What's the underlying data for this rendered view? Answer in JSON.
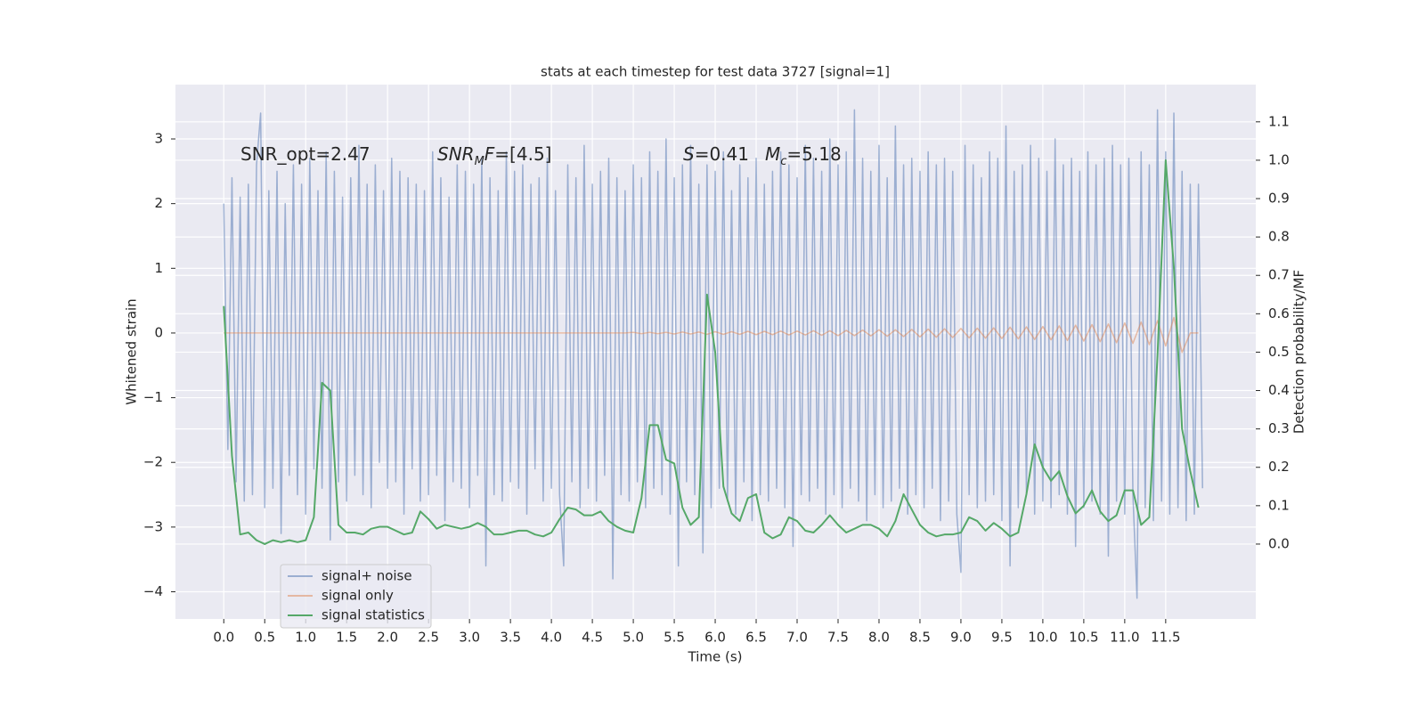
{
  "chart_data": {
    "type": "line",
    "title": "stats at each timestep for test data 3727 [signal=1]",
    "x_label": "Time (s)",
    "y_label": "Whitened strain",
    "y2_label": "Detection probability/MF",
    "annotations": [
      [
        "SNR_opt=2.47"
      ],
      [
        "SNR",
        "M",
        "F",
        "=[4.5]"
      ],
      [
        "S",
        "=0.41"
      ],
      [
        "M",
        "c",
        "=5.18"
      ]
    ],
    "xlim": [
      -0.59,
      12.6
    ],
    "ylim": [
      -4.42,
      3.84
    ],
    "y2lim": [
      -0.195,
      1.197
    ],
    "xticks": [
      {
        "value": 0,
        "label": "0.0"
      },
      {
        "value": 0.5,
        "label": "0.5"
      },
      {
        "value": 1,
        "label": "1.0"
      },
      {
        "value": 1.5,
        "label": "1.5"
      },
      {
        "value": 2,
        "label": "2.0"
      },
      {
        "value": 2.5,
        "label": "2.5"
      },
      {
        "value": 3,
        "label": "3.0"
      },
      {
        "value": 3.5,
        "label": "3.5"
      },
      {
        "value": 4,
        "label": "4.0"
      },
      {
        "value": 4.5,
        "label": "4.5"
      },
      {
        "value": 5,
        "label": "5.0"
      },
      {
        "value": 5.5,
        "label": "5.5"
      },
      {
        "value": 6,
        "label": "6.0"
      },
      {
        "value": 6.5,
        "label": "6.5"
      },
      {
        "value": 7,
        "label": "7.0"
      },
      {
        "value": 7.5,
        "label": "7.5"
      },
      {
        "value": 8,
        "label": "8.0"
      },
      {
        "value": 8.5,
        "label": "8.5"
      },
      {
        "value": 9,
        "label": "9.0"
      },
      {
        "value": 9.5,
        "label": "9.5"
      },
      {
        "value": 10,
        "label": "10.0"
      },
      {
        "value": 10.5,
        "label": "10.5"
      },
      {
        "value": 11,
        "label": "11.0"
      },
      {
        "value": 11.5,
        "label": "11.5"
      }
    ],
    "yticks": [
      {
        "value": -4,
        "label": "−4"
      },
      {
        "value": -3,
        "label": "−3"
      },
      {
        "value": -2,
        "label": "−2"
      },
      {
        "value": -1,
        "label": "−1"
      },
      0,
      1,
      2,
      3
    ],
    "y2ticks": [
      {
        "value": 0,
        "label": "0.0"
      },
      {
        "value": 0.1,
        "label": "0.1"
      },
      {
        "value": 0.2,
        "label": "0.2"
      },
      {
        "value": 0.3,
        "label": "0.3"
      },
      {
        "value": 0.4,
        "label": "0.4"
      },
      {
        "value": 0.5,
        "label": "0.5"
      },
      {
        "value": 0.6,
        "label": "0.6"
      },
      {
        "value": 0.7,
        "label": "0.7"
      },
      {
        "value": 0.8,
        "label": "0.8"
      },
      {
        "value": 0.9,
        "label": "0.9"
      },
      {
        "value": 1,
        "label": "1.0"
      },
      {
        "value": 1.1,
        "label": "1.1"
      }
    ],
    "grid": true,
    "legend": "lower left",
    "series": [
      {
        "name": "signal+ noise",
        "color": "#4c72b0",
        "x": [
          0,
          0.05,
          0.1,
          0.15,
          0.2,
          0.25,
          0.3,
          0.35,
          0.4,
          0.45,
          0.5,
          0.55,
          0.6,
          0.65,
          0.7,
          0.75,
          0.8,
          0.85,
          0.9,
          0.95,
          1,
          1.05,
          1.1,
          1.15,
          1.2,
          1.25,
          1.3,
          1.35,
          1.4,
          1.45,
          1.5,
          1.55,
          1.6,
          1.65,
          1.7,
          1.75,
          1.8,
          1.85,
          1.9,
          1.95,
          2,
          2.05,
          2.1,
          2.15,
          2.2,
          2.25,
          2.3,
          2.35,
          2.4,
          2.45,
          2.5,
          2.55,
          2.6,
          2.65,
          2.7,
          2.75,
          2.8,
          2.85,
          2.9,
          2.95,
          3,
          3.05,
          3.1,
          3.15,
          3.2,
          3.25,
          3.3,
          3.35,
          3.4,
          3.45,
          3.5,
          3.55,
          3.6,
          3.65,
          3.7,
          3.75,
          3.8,
          3.85,
          3.9,
          3.95,
          4,
          4.05,
          4.1,
          4.15,
          4.2,
          4.25,
          4.3,
          4.35,
          4.4,
          4.45,
          4.5,
          4.55,
          4.6,
          4.65,
          4.7,
          4.75,
          4.8,
          4.85,
          4.9,
          4.95,
          5,
          5.05,
          5.1,
          5.15,
          5.2,
          5.25,
          5.3,
          5.35,
          5.4,
          5.45,
          5.5,
          5.55,
          5.6,
          5.65,
          5.7,
          5.75,
          5.8,
          5.85,
          5.9,
          5.95,
          6,
          6.05,
          6.1,
          6.15,
          6.2,
          6.25,
          6.3,
          6.35,
          6.4,
          6.45,
          6.5,
          6.55,
          6.6,
          6.65,
          6.7,
          6.75,
          6.8,
          6.85,
          6.9,
          6.95,
          7,
          7.05,
          7.1,
          7.15,
          7.2,
          7.25,
          7.3,
          7.35,
          7.4,
          7.45,
          7.5,
          7.55,
          7.6,
          7.65,
          7.7,
          7.75,
          7.8,
          7.85,
          7.9,
          7.95,
          8,
          8.05,
          8.1,
          8.15,
          8.2,
          8.25,
          8.3,
          8.35,
          8.4,
          8.45,
          8.5,
          8.55,
          8.6,
          8.65,
          8.7,
          8.75,
          8.8,
          8.85,
          8.9,
          8.95,
          9,
          9.05,
          9.1,
          9.15,
          9.2,
          9.25,
          9.3,
          9.35,
          9.4,
          9.45,
          9.5,
          9.55,
          9.6,
          9.65,
          9.7,
          9.75,
          9.8,
          9.85,
          9.9,
          9.95,
          10,
          10.05,
          10.1,
          10.15,
          10.2,
          10.25,
          10.3,
          10.35,
          10.4,
          10.45,
          10.5,
          10.55,
          10.6,
          10.65,
          10.7,
          10.75,
          10.8,
          10.85,
          10.9,
          10.95,
          11,
          11.05,
          11.1,
          11.15,
          11.2,
          11.25,
          11.3,
          11.35,
          11.4,
          11.45,
          11.5,
          11.55,
          11.6,
          11.65,
          11.7,
          11.75,
          11.8,
          11.85,
          11.9,
          11.95
        ],
        "values": [
          2.0,
          -1.8,
          2.4,
          -2.3,
          2.1,
          -2.6,
          2.3,
          -2.5,
          2.6,
          3.4,
          -2.7,
          2.2,
          -2.4,
          2.5,
          -3.1,
          2.0,
          -2.2,
          2.6,
          -2.5,
          2.3,
          -2.8,
          2.7,
          -2.1,
          2.2,
          -2.4,
          2.8,
          -3.2,
          2.5,
          -2.3,
          2.1,
          -2.6,
          2.4,
          -2.2,
          2.9,
          -2.5,
          2.3,
          -2.7,
          2.6,
          -2.0,
          2.2,
          -2.4,
          2.7,
          -2.3,
          2.5,
          -2.8,
          2.4,
          -2.1,
          2.3,
          -2.6,
          2.2,
          -2.5,
          2.8,
          -2.2,
          2.4,
          -2.9,
          2.1,
          -2.3,
          2.6,
          -2.4,
          2.5,
          -2.7,
          2.3,
          -2.2,
          2.7,
          -3.6,
          2.4,
          -2.5,
          2.2,
          -2.6,
          2.8,
          -2.3,
          2.5,
          -2.4,
          2.6,
          -2.8,
          2.3,
          -2.1,
          2.4,
          -2.6,
          2.7,
          -2.4,
          2.2,
          -2.5,
          -3.6,
          2.6,
          -2.3,
          2.4,
          -2.7,
          2.9,
          -2.4,
          2.3,
          -2.6,
          2.5,
          -2.2,
          2.7,
          -3.8,
          2.4,
          -2.5,
          2.2,
          -2.6,
          2.6,
          -2.3,
          2.4,
          -2.7,
          2.8,
          -2.4,
          2.5,
          -2.5,
          3.0,
          -2.8,
          2.4,
          -3.6,
          2.6,
          -2.3,
          2.9,
          -2.5,
          2.3,
          -3.4,
          2.6,
          -2.7,
          2.5,
          -2.4,
          2.8,
          -2.6,
          2.2,
          -2.8,
          2.6,
          -2.3,
          2.4,
          -2.9,
          2.7,
          -2.5,
          2.3,
          -2.6,
          2.5,
          -2.4,
          2.8,
          -2.7,
          2.6,
          -3.3,
          2.4,
          -2.5,
          2.9,
          -2.6,
          2.7,
          -2.4,
          2.5,
          -2.8,
          3.0,
          -2.5,
          2.6,
          -2.7,
          2.8,
          -2.4,
          3.45,
          -2.6,
          2.7,
          -2.9,
          2.5,
          -2.5,
          2.9,
          -2.7,
          2.4,
          -2.6,
          3.2,
          -2.4,
          2.6,
          -2.8,
          2.7,
          -2.5,
          2.5,
          -2.7,
          2.8,
          -2.4,
          2.6,
          -2.9,
          2.7,
          -2.6,
          2.5,
          -2.8,
          -3.7,
          2.9,
          -2.5,
          2.6,
          -2.7,
          2.4,
          -2.6,
          2.8,
          -2.5,
          2.7,
          -2.9,
          3.2,
          -3.6,
          2.5,
          -2.7,
          2.6,
          -2.5,
          2.9,
          -2.8,
          2.7,
          -2.6,
          2.5,
          -2.7,
          3.0,
          -2.5,
          2.6,
          -2.8,
          2.7,
          -3.3,
          2.5,
          -2.7,
          2.8,
          -2.6,
          2.6,
          -2.8,
          2.7,
          -3.45,
          2.9,
          -2.6,
          2.6,
          -2.8,
          2.7,
          -2.5,
          -4.1,
          2.8,
          -2.7,
          2.6,
          -2.9,
          3.45,
          -2.6,
          2.8,
          -2.8,
          3.4,
          -2.7,
          2.5,
          -2.9,
          2.3,
          -2.8,
          2.3,
          -2.4
        ]
      },
      {
        "name": "signal only",
        "color": "#dd8452",
        "x": [
          0,
          0.1,
          0.2,
          0.3,
          0.4,
          0.5,
          0.6,
          0.7,
          0.8,
          0.9,
          1,
          1.1,
          1.2,
          1.3,
          1.4,
          1.5,
          1.6,
          1.7,
          1.8,
          1.9,
          2,
          2.1,
          2.2,
          2.3,
          2.4,
          2.5,
          2.6,
          2.7,
          2.8,
          2.9,
          3,
          3.1,
          3.2,
          3.3,
          3.4,
          3.5,
          3.6,
          3.7,
          3.8,
          3.9,
          4,
          4.1,
          4.2,
          4.3,
          4.4,
          4.5,
          4.6,
          4.7,
          4.8,
          4.9,
          5,
          5.1,
          5.2,
          5.3,
          5.4,
          5.5,
          5.6,
          5.7,
          5.8,
          5.9,
          6,
          6.1,
          6.2,
          6.3,
          6.4,
          6.5,
          6.6,
          6.7,
          6.8,
          6.9,
          7,
          7.1,
          7.2,
          7.3,
          7.4,
          7.5,
          7.6,
          7.7,
          7.8,
          7.9,
          8,
          8.1,
          8.2,
          8.3,
          8.4,
          8.5,
          8.6,
          8.7,
          8.8,
          8.9,
          9,
          9.1,
          9.2,
          9.3,
          9.4,
          9.5,
          9.6,
          9.7,
          9.8,
          9.9,
          10,
          10.1,
          10.2,
          10.3,
          10.4,
          10.5,
          10.6,
          10.7,
          10.8,
          10.9,
          11,
          11.1,
          11.2,
          11.3,
          11.4,
          11.5,
          11.6,
          11.7,
          11.8,
          11.9
        ],
        "values": [
          0,
          0,
          0,
          0,
          0,
          0,
          0,
          0,
          0,
          0,
          0,
          0,
          0,
          0,
          0,
          0,
          0,
          0,
          0,
          0,
          0,
          0,
          0,
          0,
          0,
          0,
          0,
          0,
          0,
          0,
          0,
          0,
          0,
          0,
          0,
          0,
          0,
          0,
          0,
          0,
          0,
          0,
          0,
          0,
          0,
          0,
          0,
          0,
          0,
          0,
          0.01,
          -0.01,
          0.01,
          -0.01,
          0.01,
          -0.015,
          0.015,
          -0.015,
          0.015,
          -0.02,
          0.02,
          -0.02,
          0.02,
          -0.02,
          0.025,
          -0.025,
          0.025,
          -0.025,
          0.03,
          -0.03,
          0.03,
          -0.03,
          0.035,
          -0.035,
          0.035,
          -0.04,
          0.04,
          -0.04,
          0.045,
          -0.045,
          0.05,
          -0.05,
          0.05,
          -0.055,
          0.055,
          -0.06,
          0.06,
          -0.065,
          0.065,
          -0.07,
          0.07,
          -0.075,
          0.075,
          -0.08,
          0.08,
          -0.085,
          0.09,
          -0.09,
          0.095,
          -0.1,
          0.1,
          -0.105,
          0.11,
          -0.115,
          0.12,
          -0.125,
          0.13,
          -0.135,
          0.14,
          -0.15,
          0.155,
          -0.16,
          0.17,
          -0.18,
          0.19,
          -0.2,
          0.24,
          -0.3,
          0,
          0
        ]
      },
      {
        "name": "signal statistics",
        "color": "#55a868",
        "axis": "y2",
        "x": [
          0,
          0.1,
          0.2,
          0.3,
          0.4,
          0.5,
          0.6,
          0.7,
          0.8,
          0.9,
          1,
          1.1,
          1.2,
          1.3,
          1.4,
          1.5,
          1.6,
          1.7,
          1.8,
          1.9,
          2,
          2.1,
          2.2,
          2.3,
          2.4,
          2.5,
          2.6,
          2.7,
          2.8,
          2.9,
          3,
          3.1,
          3.2,
          3.3,
          3.4,
          3.5,
          3.6,
          3.7,
          3.8,
          3.9,
          4,
          4.1,
          4.2,
          4.3,
          4.4,
          4.5,
          4.6,
          4.7,
          4.8,
          4.9,
          5,
          5.1,
          5.2,
          5.3,
          5.4,
          5.5,
          5.6,
          5.7,
          5.8,
          5.9,
          6,
          6.1,
          6.2,
          6.3,
          6.4,
          6.5,
          6.6,
          6.7,
          6.8,
          6.9,
          7,
          7.1,
          7.2,
          7.3,
          7.4,
          7.5,
          7.6,
          7.7,
          7.8,
          7.9,
          8,
          8.1,
          8.2,
          8.3,
          8.4,
          8.5,
          8.6,
          8.7,
          8.8,
          8.9,
          9,
          9.1,
          9.2,
          9.3,
          9.4,
          9.5,
          9.6,
          9.7,
          9.8,
          9.9,
          10,
          10.1,
          10.2,
          10.3,
          10.4,
          10.5,
          10.6,
          10.7,
          10.8,
          10.9,
          11,
          11.1,
          11.2,
          11.3,
          11.4,
          11.5,
          11.6,
          11.7,
          11.8,
          11.9
        ],
        "values": [
          0.62,
          0.23,
          0.025,
          0.03,
          0.01,
          0,
          0.01,
          0.005,
          0.01,
          0.005,
          0.01,
          0.07,
          0.42,
          0.4,
          0.05,
          0.03,
          0.03,
          0.025,
          0.04,
          0.045,
          0.045,
          0.035,
          0.025,
          0.03,
          0.085,
          0.065,
          0.04,
          0.05,
          0.045,
          0.04,
          0.045,
          0.055,
          0.045,
          0.025,
          0.025,
          0.03,
          0.035,
          0.035,
          0.025,
          0.02,
          0.03,
          0.065,
          0.095,
          0.09,
          0.075,
          0.075,
          0.085,
          0.06,
          0.045,
          0.035,
          0.03,
          0.12,
          0.31,
          0.31,
          0.22,
          0.21,
          0.095,
          0.05,
          0.07,
          0.65,
          0.5,
          0.15,
          0.08,
          0.06,
          0.12,
          0.13,
          0.03,
          0.015,
          0.025,
          0.07,
          0.06,
          0.035,
          0.03,
          0.05,
          0.075,
          0.05,
          0.03,
          0.04,
          0.05,
          0.05,
          0.04,
          0.02,
          0.06,
          0.13,
          0.09,
          0.05,
          0.03,
          0.02,
          0.025,
          0.025,
          0.03,
          0.07,
          0.06,
          0.035,
          0.055,
          0.04,
          0.02,
          0.03,
          0.13,
          0.26,
          0.2,
          0.165,
          0.19,
          0.125,
          0.08,
          0.1,
          0.14,
          0.085,
          0.06,
          0.075,
          0.14,
          0.14,
          0.05,
          0.07,
          0.49,
          1.0,
          0.72,
          0.3,
          0.19,
          0.095
        ]
      }
    ]
  }
}
